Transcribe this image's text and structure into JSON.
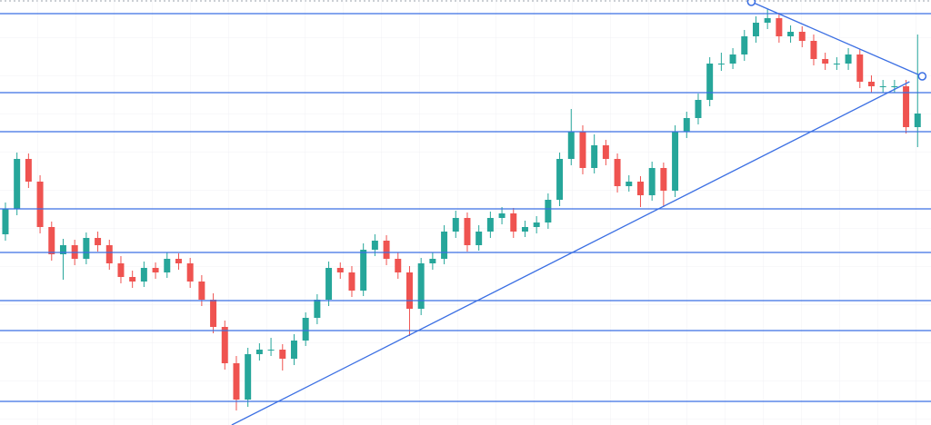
{
  "chart_data": {
    "type": "candlestick",
    "open": [
      210,
      238,
      293,
      268,
      218,
      188,
      198,
      183,
      206,
      198,
      178,
      163,
      158,
      173,
      168,
      183,
      178,
      158,
      138,
      108,
      68,
      28,
      78,
      83,
      83,
      73,
      93,
      118,
      138,
      173,
      168,
      148,
      193,
      203,
      183,
      168,
      128,
      178,
      183,
      213,
      228,
      198,
      213,
      228,
      233,
      213,
      218,
      223,
      248,
      293,
      323,
      283,
      308,
      293,
      263,
      268,
      253,
      283,
      258,
      323,
      338,
      358,
      398,
      398,
      408,
      428,
      443,
      448,
      428,
      433,
      423,
      403,
      398,
      398,
      408,
      378,
      373,
      373,
      373,
      328
    ],
    "high": [
      245,
      300,
      299,
      275,
      224,
      205,
      204,
      212,
      213,
      204,
      186,
      170,
      180,
      179,
      190,
      189,
      184,
      165,
      145,
      115,
      76,
      85,
      90,
      96,
      89,
      100,
      124,
      144,
      180,
      179,
      175,
      200,
      210,
      209,
      190,
      175,
      184,
      190,
      220,
      236,
      234,
      220,
      235,
      240,
      239,
      225,
      230,
      255,
      300,
      348,
      330,
      320,
      314,
      299,
      275,
      274,
      290,
      289,
      330,
      345,
      365,
      405,
      410,
      415,
      435,
      450,
      458,
      454,
      440,
      439,
      430,
      410,
      405,
      415,
      414,
      385,
      380,
      380,
      380,
      430
    ],
    "low": [
      203,
      231,
      261,
      211,
      181,
      160,
      176,
      177,
      191,
      171,
      156,
      151,
      152,
      161,
      162,
      171,
      151,
      131,
      101,
      61,
      16,
      20,
      71,
      76,
      60,
      66,
      87,
      111,
      131,
      161,
      141,
      142,
      186,
      176,
      161,
      98,
      121,
      171,
      177,
      206,
      191,
      192,
      206,
      221,
      206,
      207,
      211,
      216,
      241,
      286,
      276,
      277,
      286,
      256,
      257,
      240,
      247,
      240,
      251,
      316,
      331,
      351,
      390,
      392,
      401,
      421,
      436,
      421,
      421,
      416,
      396,
      391,
      391,
      391,
      371,
      366,
      366,
      366,
      321,
      306
    ],
    "close": [
      238,
      293,
      268,
      218,
      188,
      198,
      183,
      206,
      198,
      178,
      163,
      158,
      173,
      168,
      183,
      178,
      158,
      138,
      108,
      68,
      28,
      78,
      83,
      83,
      73,
      93,
      118,
      138,
      173,
      168,
      148,
      193,
      203,
      183,
      168,
      128,
      178,
      183,
      213,
      228,
      198,
      213,
      228,
      233,
      213,
      218,
      223,
      248,
      293,
      323,
      283,
      308,
      293,
      263,
      268,
      253,
      283,
      258,
      323,
      338,
      358,
      398,
      398,
      408,
      428,
      443,
      448,
      428,
      433,
      423,
      403,
      398,
      398,
      408,
      378,
      373,
      373,
      373,
      328,
      343
    ],
    "up_color": "#26a69a",
    "down_color": "#ef5350",
    "xlim": [
      -0.47,
      80.16
    ],
    "ylim": [
      0,
      468
    ],
    "levels": [
      453,
      366,
      323,
      238,
      190,
      137,
      104,
      26
    ],
    "level_color": "#3b6fe3",
    "trendlines": [
      {
        "x": [
          19.6,
          78.3
        ],
        "y": [
          0,
          378
        ]
      },
      {
        "x": [
          64.6,
          79.4
        ],
        "y": [
          466,
          384
        ]
      }
    ],
    "grid": true
  }
}
